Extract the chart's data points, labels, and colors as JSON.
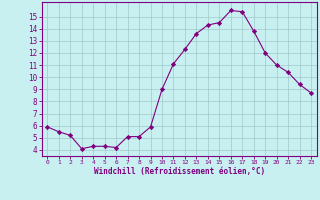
{
  "x": [
    0,
    1,
    2,
    3,
    4,
    5,
    6,
    7,
    8,
    9,
    10,
    11,
    12,
    13,
    14,
    15,
    16,
    17,
    18,
    19,
    20,
    21,
    22,
    23
  ],
  "y": [
    5.9,
    5.5,
    5.2,
    4.1,
    4.3,
    4.3,
    4.2,
    5.1,
    5.1,
    5.9,
    9.0,
    11.1,
    12.3,
    13.6,
    14.3,
    14.5,
    15.5,
    15.4,
    13.8,
    12.0,
    11.0,
    10.4,
    9.4,
    8.7
  ],
  "line_color": "#800080",
  "marker": "D",
  "marker_size": 2.2,
  "bg_color": "#c8f0f0",
  "grid_color": "#a0c8c8",
  "xlabel": "Windchill (Refroidissement éolien,°C)",
  "ylabel_ticks": [
    4,
    5,
    6,
    7,
    8,
    9,
    10,
    11,
    12,
    13,
    14,
    15
  ],
  "xlim": [
    -0.5,
    23.5
  ],
  "ylim": [
    3.5,
    16.2
  ],
  "xticks": [
    0,
    1,
    2,
    3,
    4,
    5,
    6,
    7,
    8,
    9,
    10,
    11,
    12,
    13,
    14,
    15,
    16,
    17,
    18,
    19,
    20,
    21,
    22,
    23
  ],
  "tick_color": "#800080",
  "label_color": "#800080",
  "spine_color": "#800080"
}
